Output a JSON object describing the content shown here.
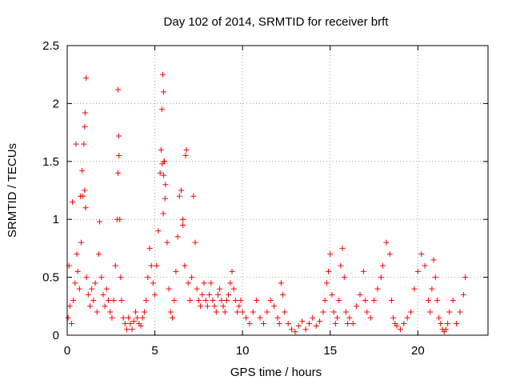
{
  "chart_data": {
    "type": "scatter",
    "title": "Day 102 of 2014, SRMTID for receiver brft",
    "xlabel": "GPS time / hours",
    "ylabel": "SRMTID / TECUs",
    "xlim": [
      0,
      24
    ],
    "ylim": [
      0,
      2.5
    ],
    "xticks": [
      0,
      5,
      10,
      15,
      20
    ],
    "yticks": [
      0,
      0.5,
      1,
      1.5,
      2,
      2.5
    ],
    "xtick_labels": [
      "0",
      "5",
      "10",
      "15",
      "20"
    ],
    "ytick_labels": [
      "0",
      "0.5",
      "1",
      "1.5",
      "2",
      "2.5"
    ],
    "grid": true,
    "marker": "+",
    "color": "#ff0000",
    "points_x": [
      0.05,
      0.15,
      0.25,
      0.35,
      0.45,
      0.55,
      0.6,
      0.7,
      0.8,
      0.9,
      0.95,
      1.0,
      1.05,
      1.1,
      1.2,
      1.3,
      1.4,
      1.5,
      1.6,
      1.7,
      1.8,
      1.85,
      1.95,
      2.05,
      2.15,
      2.25,
      2.35,
      2.45,
      2.55,
      2.65,
      2.75,
      2.85,
      2.9,
      2.95,
      3.0,
      3.05,
      3.1,
      3.2,
      3.3,
      3.4,
      3.5,
      3.6,
      3.7,
      3.8,
      3.9,
      4.0,
      4.1,
      4.2,
      4.3,
      4.4,
      4.5,
      4.6,
      4.7,
      4.8,
      4.9,
      5.0,
      5.1,
      5.2,
      5.3,
      5.35,
      5.4,
      5.45,
      5.5,
      5.55,
      5.6,
      5.7,
      5.8,
      5.9,
      6.0,
      6.1,
      6.2,
      6.3,
      6.4,
      6.5,
      6.6,
      6.7,
      6.75,
      6.8,
      6.9,
      7.0,
      7.1,
      7.2,
      7.3,
      7.4,
      7.5,
      7.6,
      7.7,
      7.8,
      7.9,
      8.0,
      8.1,
      8.2,
      8.3,
      8.4,
      8.5,
      8.6,
      8.7,
      8.8,
      8.9,
      9.0,
      9.1,
      9.2,
      9.3,
      9.4,
      9.5,
      9.6,
      9.7,
      9.8,
      9.9,
      10.0,
      10.2,
      10.4,
      10.6,
      10.8,
      11.0,
      11.2,
      11.4,
      11.6,
      11.8,
      12.0,
      12.1,
      12.2,
      12.3,
      12.4,
      12.6,
      12.8,
      13.0,
      13.2,
      13.4,
      13.6,
      13.8,
      14.0,
      14.2,
      14.4,
      14.6,
      14.7,
      14.8,
      14.9,
      15.0,
      15.1,
      15.2,
      15.3,
      15.4,
      15.5,
      15.6,
      15.7,
      15.8,
      15.9,
      16.0,
      16.1,
      16.3,
      16.5,
      16.7,
      16.9,
      17.0,
      17.1,
      17.3,
      17.5,
      17.7,
      17.9,
      18.0,
      18.2,
      18.4,
      18.5,
      18.6,
      18.7,
      18.8,
      19.0,
      19.2,
      19.4,
      19.6,
      19.8,
      20.0,
      20.2,
      20.4,
      20.6,
      20.7,
      20.8,
      20.9,
      21.0,
      21.1,
      21.2,
      21.3,
      21.4,
      21.5,
      21.6,
      21.7,
      21.8,
      22.0,
      22.2,
      22.4,
      22.6,
      22.7,
      0.1,
      0.3,
      0.5,
      0.75,
      0.85,
      1.0,
      1.02,
      1.08,
      2.9,
      2.95,
      5.42,
      5.48,
      5.5,
      5.52,
      5.58,
      6.6,
      6.85,
      6.9,
      7.15,
      7.25
    ],
    "points_y": [
      0.15,
      0.25,
      0.1,
      0.3,
      0.45,
      0.7,
      0.55,
      0.4,
      0.8,
      1.2,
      1.65,
      1.8,
      1.1,
      0.5,
      0.35,
      0.25,
      0.4,
      0.3,
      0.45,
      0.2,
      0.7,
      0.98,
      0.5,
      0.35,
      0.25,
      0.4,
      0.3,
      0.2,
      0.15,
      0.3,
      0.6,
      1.0,
      1.4,
      1.55,
      1.0,
      0.5,
      0.3,
      0.15,
      0.1,
      0.05,
      0.15,
      0.1,
      0.05,
      0.12,
      0.2,
      0.15,
      0.1,
      0.08,
      0.15,
      0.2,
      0.3,
      0.5,
      0.75,
      0.6,
      0.45,
      0.35,
      0.6,
      0.9,
      1.4,
      1.6,
      1.95,
      2.25,
      2.1,
      1.5,
      1.3,
      0.8,
      0.4,
      0.2,
      0.15,
      0.3,
      0.55,
      0.85,
      1.2,
      1.25,
      1.0,
      0.6,
      1.55,
      1.6,
      0.45,
      0.3,
      0.5,
      1.2,
      0.8,
      0.4,
      0.3,
      0.25,
      0.35,
      0.45,
      0.3,
      0.25,
      0.35,
      0.45,
      0.3,
      0.25,
      0.2,
      0.35,
      0.4,
      0.3,
      0.25,
      0.2,
      0.3,
      0.35,
      0.45,
      0.55,
      0.4,
      0.3,
      0.2,
      0.25,
      0.3,
      0.2,
      0.15,
      0.1,
      0.2,
      0.3,
      0.15,
      0.1,
      0.2,
      0.3,
      0.25,
      0.15,
      0.1,
      0.45,
      0.35,
      0.2,
      0.1,
      0.05,
      0.03,
      0.08,
      0.12,
      0.05,
      0.1,
      0.15,
      0.08,
      0.12,
      0.2,
      0.3,
      0.45,
      0.55,
      0.7,
      0.35,
      0.2,
      0.1,
      0.15,
      0.3,
      0.6,
      0.75,
      0.5,
      0.2,
      0.1,
      0.15,
      0.1,
      0.25,
      0.35,
      0.55,
      0.3,
      0.2,
      0.15,
      0.3,
      0.4,
      0.5,
      0.6,
      0.8,
      0.7,
      0.3,
      0.15,
      0.1,
      0.08,
      0.05,
      0.1,
      0.15,
      0.2,
      0.4,
      0.55,
      0.7,
      0.6,
      0.3,
      0.2,
      0.4,
      0.65,
      0.5,
      0.3,
      0.15,
      0.1,
      0.05,
      0.03,
      0.05,
      0.1,
      0.2,
      0.3,
      0.1,
      0.2,
      0.35,
      0.5,
      0.6,
      1.15,
      1.65,
      1.2,
      1.42,
      1.25,
      1.92,
      2.22,
      2.12,
      1.72,
      1.48,
      1.05,
      1.38,
      1.5,
      1.18,
      0.95
    ]
  }
}
